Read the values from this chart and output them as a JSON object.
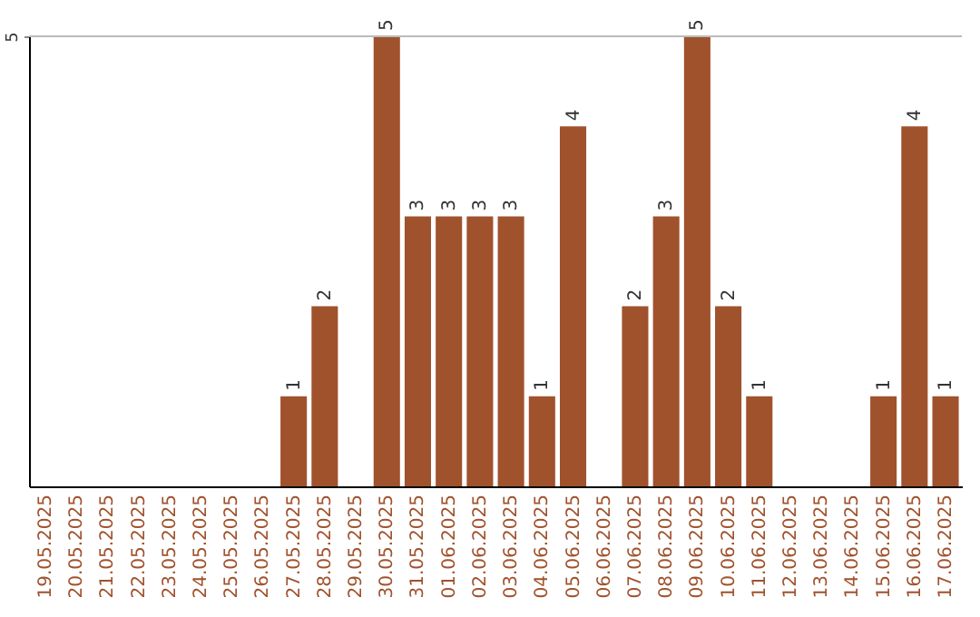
{
  "chart_data": {
    "type": "bar",
    "categories": [
      "19.05.2025",
      "20.05.2025",
      "21.05.2025",
      "22.05.2025",
      "23.05.2025",
      "24.05.2025",
      "25.05.2025",
      "26.05.2025",
      "27.05.2025",
      "28.05.2025",
      "29.05.2025",
      "30.05.2025",
      "31.05.2025",
      "01.06.2025",
      "02.06.2025",
      "03.06.2025",
      "04.06.2025",
      "05.06.2025",
      "06.06.2025",
      "07.06.2025",
      "08.06.2025",
      "09.06.2025",
      "10.06.2025",
      "11.06.2025",
      "12.06.2025",
      "13.06.2025",
      "14.06.2025",
      "15.06.2025",
      "16.06.2025",
      "17.06.2025"
    ],
    "values": [
      0,
      0,
      0,
      0,
      0,
      0,
      0,
      0,
      1,
      2,
      0,
      5,
      3,
      3,
      3,
      3,
      1,
      4,
      0,
      2,
      3,
      5,
      2,
      1,
      0,
      0,
      0,
      1,
      4,
      1
    ],
    "value_labels": [
      null,
      null,
      null,
      null,
      null,
      null,
      null,
      null,
      "1",
      "2",
      null,
      "5",
      "3",
      "3",
      "3",
      "3",
      "1",
      "4",
      null,
      "2",
      "3",
      "5",
      "2",
      "1",
      null,
      null,
      null,
      "1",
      "4",
      "1"
    ],
    "color": "#a0522d",
    "ylim": [
      0,
      5
    ],
    "yticks": [
      5
    ],
    "ref_lines": [
      {
        "axis": "y",
        "value": 5,
        "color": "#bbbbbb"
      }
    ]
  }
}
